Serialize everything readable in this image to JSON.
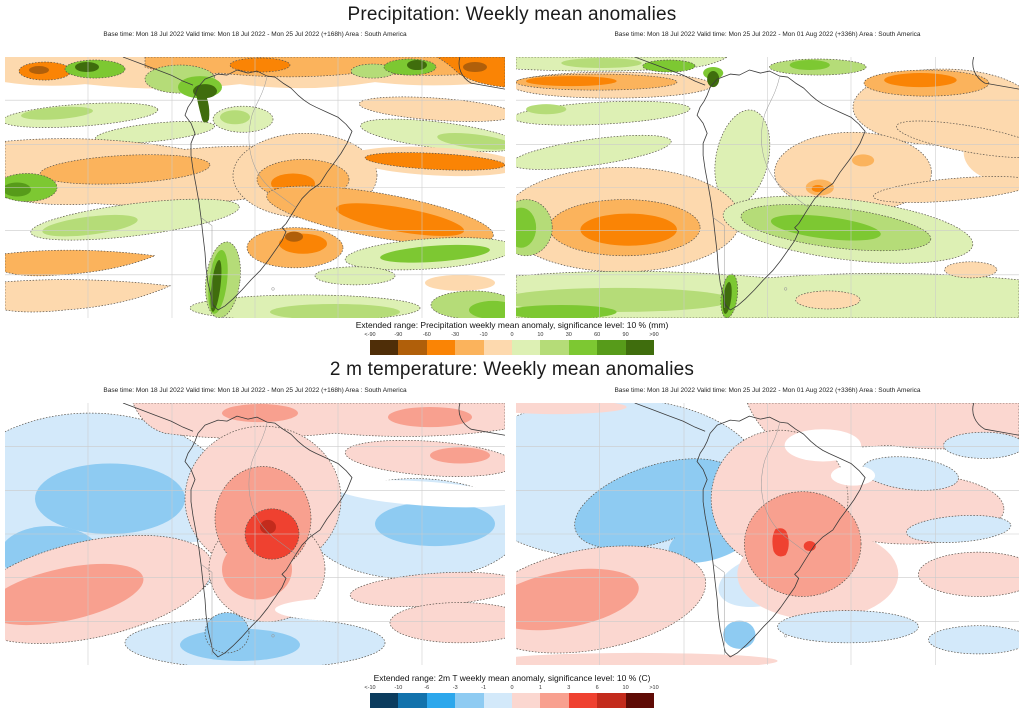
{
  "page": {
    "background": "#ffffff",
    "area": "South America"
  },
  "precipitation": {
    "title": "Precipitation: Weekly mean anomalies",
    "panels": [
      {
        "id": "precip-week1",
        "caption": "Base time: Mon 18 Jul 2022 Valid time: Mon 18 Jul 2022 - Mon 25 Jul 2022 (+168h) Area : South America"
      },
      {
        "id": "precip-week2",
        "caption": "Base time: Mon 18 Jul 2022 Valid time: Mon 25 Jul 2022 - Mon 01 Aug 2022 (+336h) Area : South America"
      }
    ],
    "legend": {
      "label": "Extended range: Precipitation weekly mean anomaly, significance level: 10 % (mm)",
      "tick_labels": [
        "<-90",
        "-90",
        "-60",
        "-30",
        "-10",
        "0",
        "10",
        "30",
        "60",
        "90",
        ">90"
      ],
      "bin_colors": [
        "#4f2e08",
        "#b05f0a",
        "#fa8405",
        "#fbb35c",
        "#fdd9ae",
        "#ddf0b4",
        "#b5dc78",
        "#7dc832",
        "#579b1a",
        "#3f6d0d"
      ]
    }
  },
  "temperature": {
    "title": "2 m temperature: Weekly mean anomalies",
    "panels": [
      {
        "id": "temp-week1",
        "caption": "Base time: Mon 18 Jul 2022 Valid time: Mon 18 Jul 2022 - Mon 25 Jul 2022 (+168h) Area : South America"
      },
      {
        "id": "temp-week2",
        "caption": "Base time: Mon 18 Jul 2022 Valid time: Mon 25 Jul 2022 - Mon 01 Aug 2022 (+336h) Area : South America"
      }
    ],
    "legend": {
      "label": "Extended range: 2m T weekly mean anomaly, significance level: 10 % (C)",
      "tick_labels": [
        "<-10",
        "-10",
        "-6",
        "-3",
        "-1",
        "0",
        "1",
        "3",
        "6",
        "10",
        ">10"
      ],
      "bin_colors": [
        "#0b3c5e",
        "#1272ac",
        "#2ca7ec",
        "#8ecbf2",
        "#d3e9fa",
        "#fbd7d0",
        "#f8a08f",
        "#ef4130",
        "#c32b1c",
        "#5f0b06"
      ]
    }
  }
}
